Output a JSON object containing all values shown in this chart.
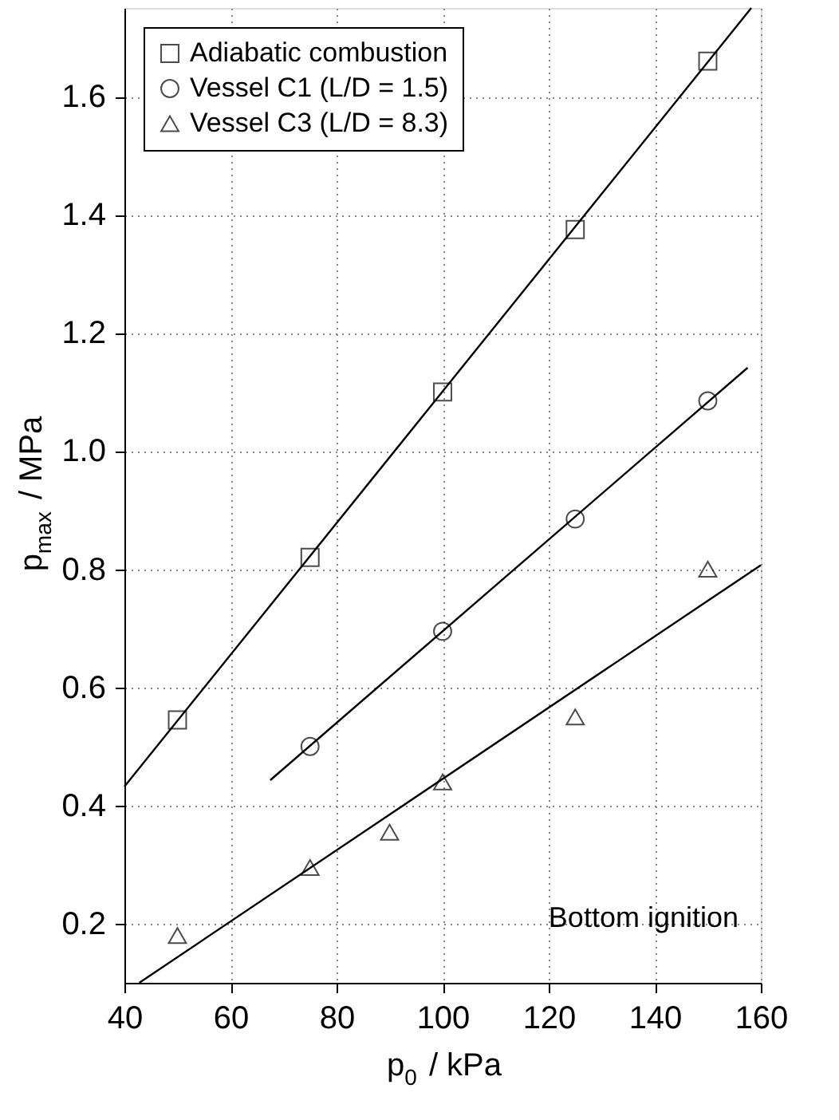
{
  "chart_data": {
    "type": "scatter",
    "xlabel": "p$_{0}$ / kPa",
    "ylabel": "p$_{max}$ / MPa",
    "xlim": [
      40,
      160
    ],
    "xticks": [
      40,
      60,
      80,
      100,
      120,
      140,
      160
    ],
    "ylim": [
      0.1,
      1.75
    ],
    "yticks": [
      {
        "value": 0.2,
        "label": "0.2"
      },
      {
        "value": 0.4,
        "label": "0.4"
      },
      {
        "value": 0.6,
        "label": "0.6"
      },
      {
        "value": 0.8,
        "label": "0.8"
      },
      {
        "value": 1.0,
        "label": "1.0"
      },
      {
        "value": 1.2,
        "label": "1.2"
      },
      {
        "value": 1.4,
        "label": "1.4"
      },
      {
        "value": 1.6,
        "label": "1.6"
      }
    ],
    "grid": true,
    "legend": "top left",
    "annotations": [
      "Bottom ignition"
    ],
    "series": [
      {
        "name": "Adiabatic combustion",
        "type": "scatter",
        "marker": "square",
        "color": "#000000",
        "x": [
          50,
          75,
          100,
          125,
          150
        ],
        "values": [
          0.545,
          0.82,
          1.1,
          1.375,
          1.66
        ]
      },
      {
        "name": "Vessel C1 (L/D = 1.5)",
        "type": "scatter",
        "marker": "circle",
        "color": "#000000",
        "x": [
          75,
          100,
          125,
          150
        ],
        "values": [
          0.5,
          0.695,
          0.885,
          1.085
        ]
      },
      {
        "name": "Vessel C3 (L/D = 8.3)",
        "type": "scatter",
        "marker": "triangle",
        "color": "#000000",
        "x": [
          50,
          75,
          90,
          100,
          125,
          150
        ],
        "values": [
          0.18,
          0.295,
          0.355,
          0.44,
          0.55,
          0.8
        ]
      },
      {
        "type": "line",
        "marker": "none",
        "color": "#000000",
        "x": [
          40,
          158.2
        ],
        "values": [
          0.432,
          1.75
        ]
      },
      {
        "type": "line",
        "marker": "none",
        "color": "#000000",
        "x": [
          67.5,
          157.5
        ],
        "values": [
          0.443,
          1.141
        ]
      },
      {
        "type": "line",
        "marker": "none",
        "color": "#000000",
        "x": [
          42.8,
          160
        ],
        "values": [
          0.1,
          0.807
        ]
      }
    ]
  }
}
